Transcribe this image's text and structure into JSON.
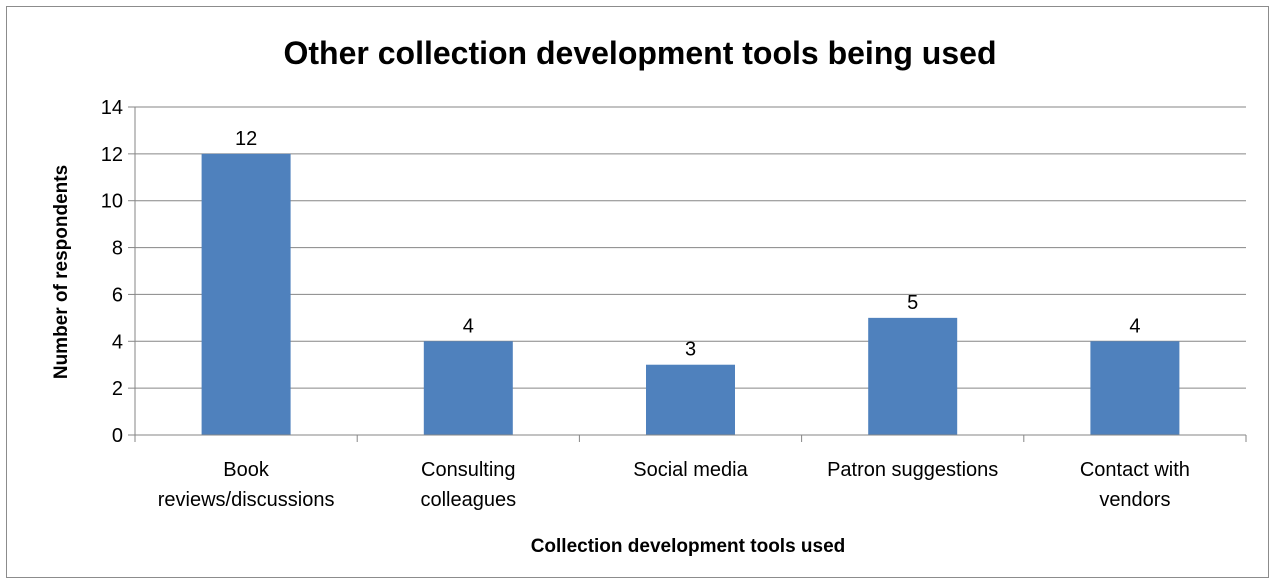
{
  "chart_data": {
    "type": "bar",
    "title": "Other collection development tools being used",
    "xlabel": "Collection development tools used",
    "ylabel": "Number of respondents",
    "categories": [
      [
        "Book",
        "reviews/discussions"
      ],
      [
        "Consulting",
        "colleagues"
      ],
      [
        "Social media"
      ],
      [
        "Patron suggestions"
      ],
      [
        "Contact with",
        "vendors"
      ]
    ],
    "values": [
      12,
      4,
      3,
      5,
      4
    ],
    "data_labels": [
      "12",
      "4",
      "3",
      "5",
      "4"
    ],
    "ylim": [
      0,
      14
    ],
    "yticks": [
      0,
      2,
      4,
      6,
      8,
      10,
      12,
      14
    ],
    "ytick_labels": [
      "0",
      "2",
      "4",
      "6",
      "8",
      "10",
      "12",
      "14"
    ],
    "grid": true,
    "legend": "none",
    "bar_color": "#4f81bd"
  }
}
